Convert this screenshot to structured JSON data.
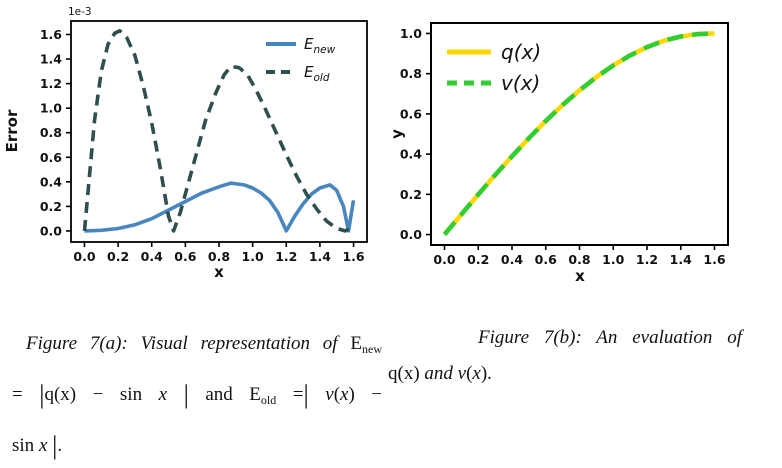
{
  "chart_data": [
    {
      "id": "figure-7a",
      "type": "line",
      "title": "",
      "xlabel": "x",
      "ylabel": "Error",
      "offset_text": "1e-3",
      "y_units": "values are ×1e-3",
      "xlim": [
        -0.08,
        1.68
      ],
      "ylim": [
        -0.09,
        1.71
      ],
      "xticks": [
        0.0,
        0.2,
        0.4,
        0.6,
        0.8,
        1.0,
        1.2,
        1.4,
        1.6
      ],
      "yticks": [
        0.0,
        0.2,
        0.4,
        0.6,
        0.8,
        1.0,
        1.2,
        1.4,
        1.6
      ],
      "grid": false,
      "legend_position": "upper right",
      "series": [
        {
          "name": "E_new",
          "label_main": "E",
          "label_sub": "new",
          "color": "#4886bd",
          "style": "solid",
          "width": 3.6,
          "dash": null,
          "legend_dash": null,
          "x": [
            0.0,
            0.1,
            0.2,
            0.3,
            0.4,
            0.5,
            0.6,
            0.7,
            0.8,
            0.87,
            0.95,
            1.0,
            1.05,
            1.1,
            1.15,
            1.2,
            1.25,
            1.3,
            1.35,
            1.4,
            1.46,
            1.5,
            1.54,
            1.57,
            1.6
          ],
          "y": [
            0.0,
            0.005,
            0.02,
            0.05,
            0.1,
            0.17,
            0.24,
            0.31,
            0.36,
            0.39,
            0.375,
            0.35,
            0.31,
            0.25,
            0.15,
            0.0,
            0.12,
            0.22,
            0.3,
            0.35,
            0.375,
            0.33,
            0.2,
            0.0,
            0.25
          ]
        },
        {
          "name": "E_old",
          "label_main": "E",
          "label_sub": "old",
          "color": "#2f4f4f",
          "style": "dashed",
          "width": 3.6,
          "dash": "11 7",
          "legend_dash": "9 6",
          "x": [
            0.0,
            0.03,
            0.06,
            0.1,
            0.14,
            0.18,
            0.21,
            0.25,
            0.3,
            0.35,
            0.4,
            0.45,
            0.5,
            0.53,
            0.57,
            0.62,
            0.67,
            0.72,
            0.78,
            0.83,
            0.87,
            0.92,
            0.97,
            1.02,
            1.08,
            1.14,
            1.2,
            1.26,
            1.32,
            1.38,
            1.44,
            1.5,
            1.55,
            1.58,
            1.6
          ],
          "y": [
            0.0,
            0.45,
            0.9,
            1.3,
            1.52,
            1.61,
            1.63,
            1.58,
            1.43,
            1.18,
            0.88,
            0.52,
            0.12,
            0.0,
            0.15,
            0.4,
            0.65,
            0.9,
            1.12,
            1.27,
            1.34,
            1.33,
            1.27,
            1.15,
            0.98,
            0.8,
            0.62,
            0.45,
            0.3,
            0.18,
            0.08,
            0.02,
            0.0,
            0.02,
            0.05
          ]
        }
      ]
    },
    {
      "id": "figure-7b",
      "type": "line",
      "title": "",
      "xlabel": "x",
      "ylabel": "y",
      "offset_text": "",
      "xlim": [
        -0.08,
        1.68
      ],
      "ylim": [
        -0.052,
        1.052
      ],
      "xticks": [
        0.0,
        0.2,
        0.4,
        0.6,
        0.8,
        1.0,
        1.2,
        1.4,
        1.6
      ],
      "yticks": [
        0.0,
        0.2,
        0.4,
        0.6,
        0.8,
        1.0
      ],
      "grid": false,
      "legend_position": "upper left",
      "series": [
        {
          "name": "q(x)",
          "label_main": "q(x)",
          "label_sub": null,
          "color": "#ffd700",
          "style": "solid",
          "width": 4.6,
          "dash": null,
          "legend_dash": null,
          "x": [
            0.0,
            0.1,
            0.2,
            0.3,
            0.4,
            0.5,
            0.6,
            0.7,
            0.8,
            0.9,
            1.0,
            1.1,
            1.2,
            1.3,
            1.4,
            1.5,
            1.6
          ],
          "y": [
            0.0,
            0.1,
            0.199,
            0.296,
            0.389,
            0.479,
            0.565,
            0.644,
            0.717,
            0.783,
            0.841,
            0.891,
            0.932,
            0.964,
            0.985,
            0.997,
            1.0
          ]
        },
        {
          "name": "v(x)",
          "label_main": "v(x)",
          "label_sub": null,
          "color": "#32cd32",
          "style": "dashed",
          "width": 4.6,
          "dash": "16 9",
          "legend_dash": "10 7",
          "x": [
            0.0,
            0.1,
            0.2,
            0.3,
            0.4,
            0.5,
            0.6,
            0.7,
            0.8,
            0.9,
            1.0,
            1.1,
            1.2,
            1.3,
            1.4,
            1.5,
            1.6
          ],
          "y": [
            0.0,
            0.1,
            0.199,
            0.296,
            0.389,
            0.479,
            0.565,
            0.644,
            0.717,
            0.783,
            0.841,
            0.891,
            0.932,
            0.964,
            0.985,
            0.997,
            1.0
          ]
        }
      ]
    }
  ],
  "captions": {
    "left": {
      "lines": [
        {
          "justify": true,
          "indent": 14,
          "segments": [
            {
              "t": "Figure 7(a): Visual representation of ",
              "s": "it"
            },
            {
              "t": "E",
              "s": "rm"
            },
            {
              "t": "new",
              "s": "sub"
            }
          ]
        },
        {
          "justify": true,
          "indent": 0,
          "segments": [
            {
              "t": "= ",
              "s": "rm"
            },
            {
              "t": "|",
              "s": "bar"
            },
            {
              "t": "q(x) − sin ",
              "s": "rm"
            },
            {
              "t": "x",
              "s": "it"
            },
            {
              "t": " ",
              "s": "rm"
            },
            {
              "t": "|",
              "s": "bar"
            },
            {
              "t": " and ",
              "s": "rm"
            },
            {
              "t": "E",
              "s": "rm"
            },
            {
              "t": "old",
              "s": "sub"
            },
            {
              "t": " =",
              "s": "rm"
            },
            {
              "t": "|",
              "s": "bar"
            },
            {
              "t": " ",
              "s": "rm"
            },
            {
              "t": "v",
              "s": "it"
            },
            {
              "t": "(",
              "s": "rm"
            },
            {
              "t": "x",
              "s": "it"
            },
            {
              "t": ") −",
              "s": "rm"
            }
          ]
        },
        {
          "justify": false,
          "indent": 0,
          "segments": [
            {
              "t": "sin ",
              "s": "rm"
            },
            {
              "t": "x",
              "s": "it"
            },
            {
              "t": " ",
              "s": "rm"
            },
            {
              "t": "|",
              "s": "bar"
            },
            {
              "t": ".",
              "s": "rm"
            }
          ]
        }
      ]
    },
    "right": {
      "lines": [
        {
          "justify": true,
          "indent": 90,
          "segments": [
            {
              "t": "Figure 7(b): An evaluation of",
              "s": "it"
            }
          ]
        },
        {
          "justify": false,
          "indent": 0,
          "segments": [
            {
              "t": "q(x) ",
              "s": "rm"
            },
            {
              "t": "and ",
              "s": "it"
            },
            {
              "t": "v",
              "s": "it"
            },
            {
              "t": "(",
              "s": "rm"
            },
            {
              "t": "x",
              "s": "it"
            },
            {
              "t": ").",
              "s": "rm"
            }
          ]
        }
      ]
    }
  }
}
